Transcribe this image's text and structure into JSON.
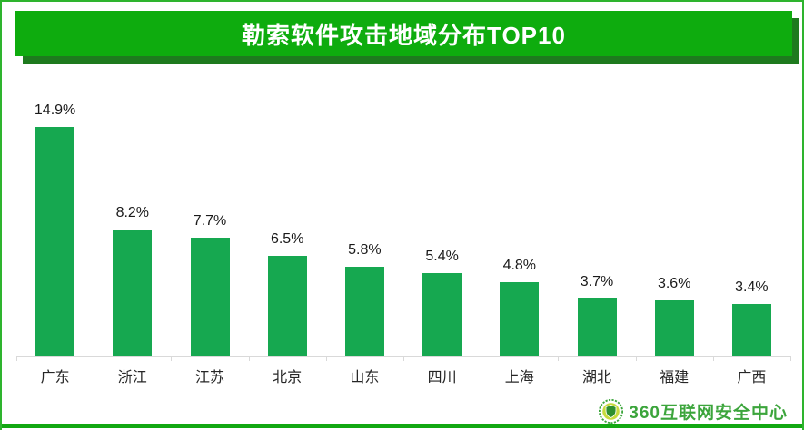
{
  "title": "勒索软件攻击地域分布TOP10",
  "chart_data": {
    "type": "bar",
    "title": "勒索软件攻击地域分布TOP10",
    "categories": [
      "广东",
      "浙江",
      "江苏",
      "北京",
      "山东",
      "四川",
      "上海",
      "湖北",
      "福建",
      "广西"
    ],
    "values": [
      14.9,
      8.2,
      7.7,
      6.5,
      5.8,
      5.4,
      4.8,
      3.7,
      3.6,
      3.4
    ],
    "value_labels": [
      "14.9%",
      "8.2%",
      "7.7%",
      "6.5%",
      "5.8%",
      "5.4%",
      "4.8%",
      "3.7%",
      "3.6%",
      "3.4%"
    ],
    "xlabel": "",
    "ylabel": "",
    "ylim": [
      0,
      16
    ],
    "grid": false,
    "legend": false,
    "bar_color": "#16a850",
    "axis_color": "#d9d9d9"
  },
  "footer": {
    "brand": "360互联网安全中心"
  },
  "colors": {
    "banner": "#0eac0e",
    "banner_shadow": "#1e7a1e",
    "bar": "#16a850",
    "axis": "#d9d9d9",
    "border": "#2eb42e",
    "bottom_bar": "#12a812",
    "logo_text": "#3ca53c",
    "title_text": "#ffffff",
    "label_text": "#262626"
  }
}
